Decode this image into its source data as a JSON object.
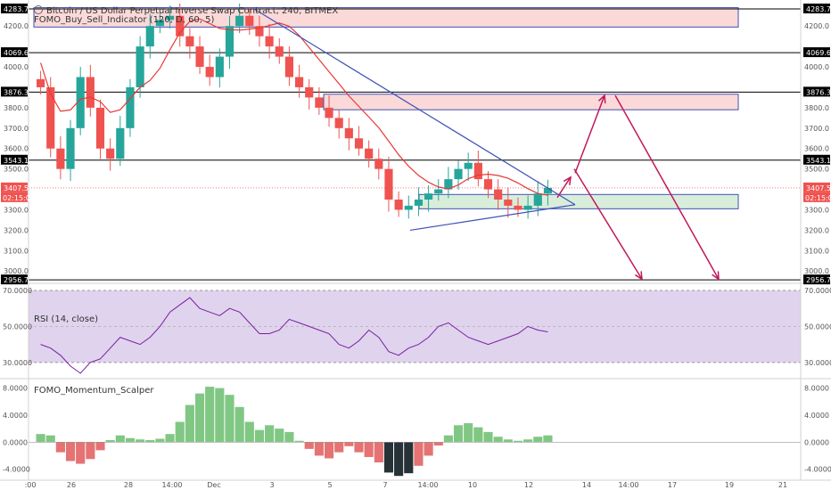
{
  "header": {
    "symbol_title": "Bitcoin / US Dollar Perpetual Inverse Swap Contract, 240, BITMEX",
    "indicator_1": "FOMO_Buy_Sell_Indicator (120, D, 60, 5)",
    "indicator_2": "RSI (14, close)",
    "indicator_3": "FOMO_Momentum_Scalper"
  },
  "colors": {
    "up": "#26a69a",
    "down": "#ef5350",
    "trendline": "#3f51b5",
    "arrow": "#c2185b",
    "ma": "#e53935",
    "rsi_band": "#d7c8e8",
    "rsi_line": "#7b1fa2",
    "hist_up": "#81c784",
    "hist_down": "#e57373",
    "hist_dark": "#263238"
  },
  "chart_data": [
    {
      "type": "candlestick",
      "title": "Bitcoin / US Dollar Perpetual Inverse Swap Contract, 240, BITMEX",
      "x_tick_labels": [
        ":00",
        "26",
        "28",
        "14:00",
        "Dec",
        "3",
        "5",
        "7",
        "14:00",
        "10",
        "12",
        "14",
        "14:00",
        "17",
        "19",
        "21"
      ],
      "y_tick_labels": [
        "4200.0",
        "4000.0",
        "3800.0",
        "3700.0",
        "3600.0",
        "3500.0",
        "3300.0",
        "3200.0",
        "3100.0",
        "3000.0"
      ],
      "ylim": [
        2940,
        4310
      ],
      "price_labels": [
        {
          "value": 4283.7,
          "text": "4283.7"
        },
        {
          "value": 4069.6,
          "text": "4069.6"
        },
        {
          "value": 3876.3,
          "text": "3876.3"
        },
        {
          "value": 3543.1,
          "text": "3543.1"
        },
        {
          "value": 3407.5,
          "text": "3407.5",
          "sub": "02:15:01",
          "kind": "last"
        },
        {
          "value": 2956.7,
          "text": "2956.7"
        }
      ],
      "zones": [
        {
          "top": 4290,
          "bottom": 4195,
          "kind": "supply"
        },
        {
          "top": 3866,
          "bottom": 3790,
          "kind": "supply"
        },
        {
          "top": 3375,
          "bottom": 3305,
          "kind": "demand"
        }
      ],
      "series_close_path": [
        3900,
        3600,
        3500,
        3700,
        3950,
        3800,
        3600,
        3550,
        3700,
        3900,
        4100,
        4200,
        4230,
        4250,
        4150,
        4100,
        4000,
        3950,
        4050,
        4200,
        4250,
        4200,
        4150,
        4100,
        4050,
        3950,
        3900,
        3850,
        3800,
        3750,
        3700,
        3650,
        3600,
        3550,
        3500,
        3350,
        3300,
        3320,
        3350,
        3380,
        3400,
        3450,
        3500,
        3530,
        3450,
        3400,
        3350,
        3320,
        3300,
        3320,
        3380,
        3407.5
      ]
    },
    {
      "type": "line",
      "title": "RSI (14, close)",
      "y_tick_labels": [
        "70.0000",
        "50.0000",
        "30.0000"
      ],
      "ylim": [
        22,
        72
      ],
      "band": [
        30,
        70
      ],
      "values": [
        40,
        38,
        34,
        28,
        24,
        30,
        32,
        38,
        44,
        42,
        40,
        44,
        50,
        58,
        62,
        66,
        60,
        58,
        56,
        60,
        58,
        52,
        46,
        46,
        48,
        54,
        52,
        50,
        48,
        46,
        40,
        38,
        42,
        48,
        44,
        36,
        34,
        38,
        40,
        44,
        50,
        52,
        48,
        44,
        42,
        40,
        42,
        44,
        46,
        50,
        48,
        47
      ]
    },
    {
      "type": "bar",
      "title": "FOMO_Momentum_Scalper",
      "y_tick_labels": [
        "8.0000",
        "4.0000",
        "0.0000",
        "-4.0000"
      ],
      "ylim": [
        -5.5,
        9
      ],
      "values": [
        1.2,
        1.0,
        -1.5,
        -2.8,
        -3.2,
        -2.5,
        -1.2,
        0.3,
        1.0,
        0.6,
        0.4,
        0.3,
        0.5,
        1.2,
        3.0,
        5.5,
        7.2,
        8.2,
        8.0,
        7.0,
        5.2,
        3.0,
        1.8,
        2.5,
        2.0,
        1.5,
        0.2,
        -1.0,
        -2.0,
        -2.4,
        -1.5,
        -0.6,
        -1.5,
        -2.2,
        -3.0,
        -4.5,
        -5.0,
        -4.6,
        -3.5,
        -2.0,
        -0.5,
        1.0,
        2.5,
        2.8,
        2.2,
        1.5,
        0.8,
        0.4,
        0.2,
        0.4,
        0.8,
        1.0
      ]
    }
  ]
}
